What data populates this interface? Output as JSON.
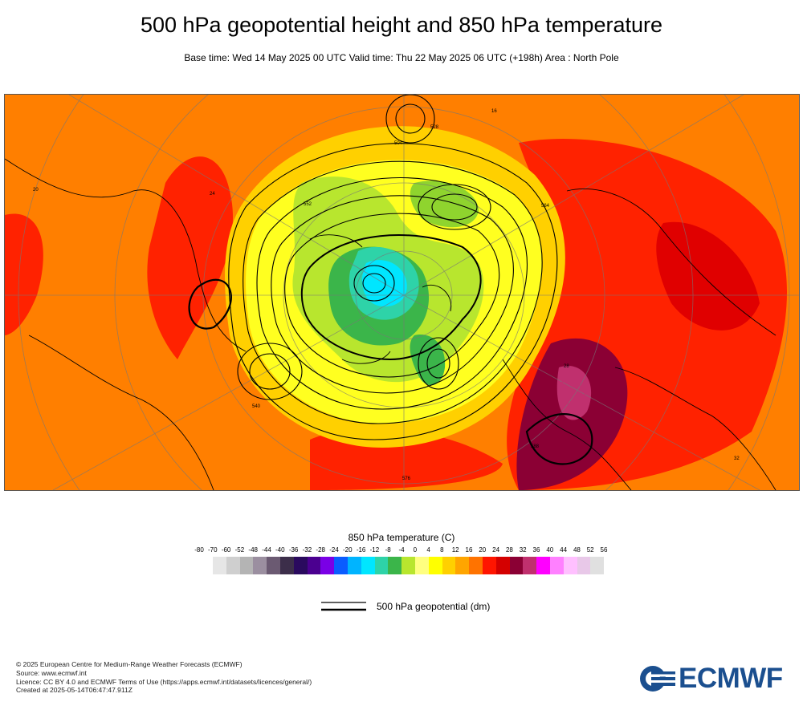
{
  "header": {
    "title": "500 hPa geopotential height and 850 hPa temperature",
    "subtitle": "Base time: Wed 14 May 2025 00 UTC Valid time: Thu 22 May 2025 06 UTC (+198h) Area : North Pole"
  },
  "map": {
    "contour_labels": [
      "504",
      "528",
      "540",
      "552",
      "564",
      "576",
      "588",
      "16",
      "20",
      "24",
      "28",
      "32"
    ]
  },
  "legend": {
    "temperature_title": "850 hPa temperature (C)",
    "ticks": [
      "-80",
      "-70",
      "-60",
      "-52",
      "-48",
      "-44",
      "-40",
      "-36",
      "-32",
      "-28",
      "-24",
      "-20",
      "-16",
      "-12",
      "-8",
      "-4",
      "0",
      "4",
      "8",
      "12",
      "16",
      "20",
      "24",
      "28",
      "32",
      "36",
      "40",
      "44",
      "48",
      "52",
      "56"
    ],
    "colors": [
      "#e6e6e6",
      "#cfcfcf",
      "#b4b4b4",
      "#9b8fa0",
      "#6b5a72",
      "#3c2e4a",
      "#2a0a5e",
      "#4b0090",
      "#7a00e6",
      "#0a5cff",
      "#00b4ff",
      "#00e6ff",
      "#2ed3a8",
      "#3bb54a",
      "#b8e62e",
      "#ffff80",
      "#ffff00",
      "#ffd000",
      "#ffa500",
      "#ff7300",
      "#ff1500",
      "#d40000",
      "#8b0034",
      "#c0306e",
      "#ff00ff",
      "#ff80ff",
      "#ffc0ff",
      "#e8c8e8",
      "#e0e0e0"
    ],
    "contour_label": "500 hPa geopotential (dm)"
  },
  "footer": {
    "lines": [
      "© 2025 European Centre for Medium-Range Weather Forecasts (ECMWF)",
      "Source: www.ecmwf.int",
      "Licence: CC BY 4.0 and ECMWF Terms of Use (https://apps.ecmwf.int/datasets/licences/general/)",
      "Created at 2025-05-14T06:47:47.911Z"
    ]
  },
  "logo": {
    "text": "ECMWF",
    "color": "#1b4f8f"
  }
}
